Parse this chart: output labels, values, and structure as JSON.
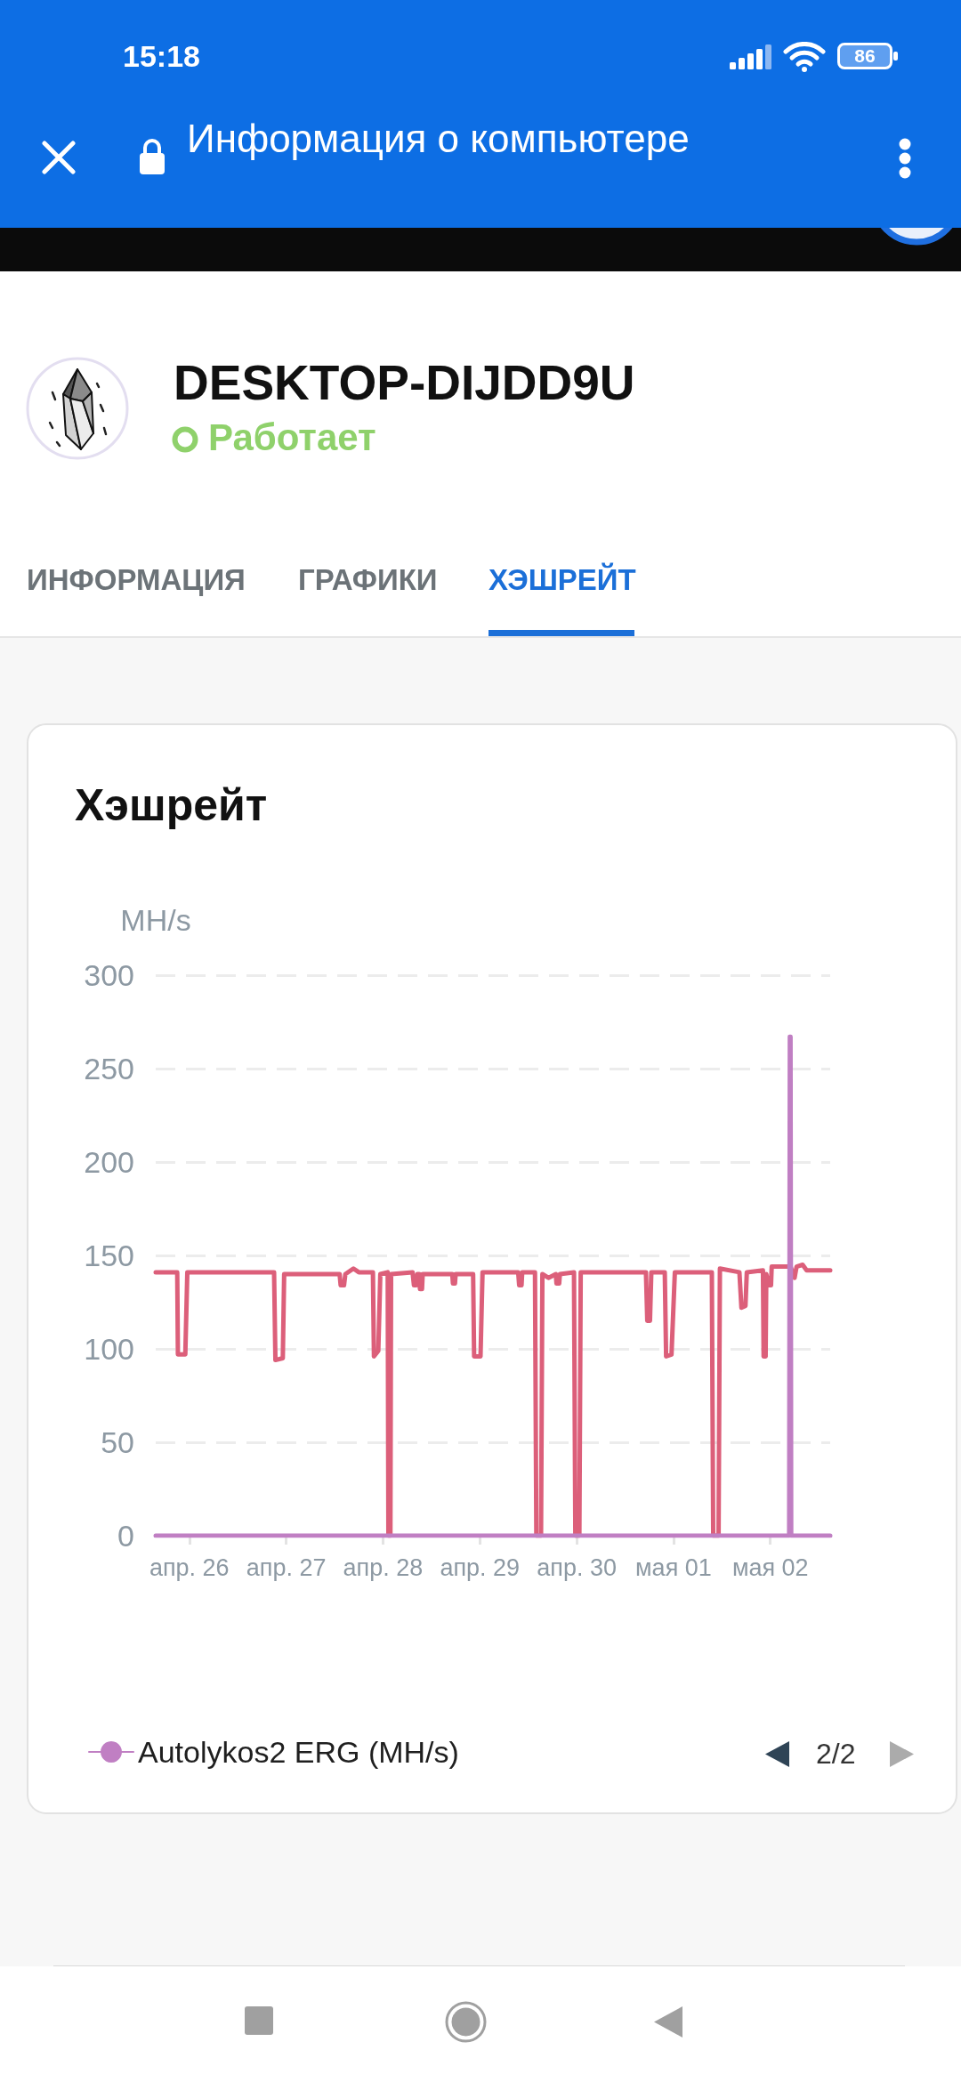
{
  "chart_data": {
    "type": "line",
    "title": "Хэшрейт",
    "ylabel": "MH/s",
    "xlim": [
      "--04-25T15:40",
      "--05-02T14:50"
    ],
    "xticks": [
      {
        "value": "--04-26",
        "label": "апр. 26"
      },
      {
        "value": "--04-27",
        "label": "апр. 27"
      },
      {
        "value": "--04-28",
        "label": "апр. 28"
      },
      {
        "value": "--04-29",
        "label": "апр. 29"
      },
      {
        "value": "--04-30",
        "label": "апр. 30"
      },
      {
        "value": "--05-01",
        "label": "мая 01"
      },
      {
        "value": "--05-02",
        "label": "мая 02"
      }
    ],
    "ylim": [
      0,
      300
    ],
    "yticks": [
      0,
      50,
      100,
      150,
      200,
      250,
      300
    ],
    "grid": "y",
    "legend": "bottom left",
    "marker": "none",
    "line_style": "solid",
    "series": [
      {
        "color": "#dc5f7a",
        "x": [
          "--04-25T15:40",
          "--04-25T21:00",
          "--04-25T21:10",
          "--04-25T23:00",
          "--04-25T23:30",
          "--04-26T21:00",
          "--04-26T21:20",
          "--04-26T23:10",
          "--04-26T23:30",
          "--04-27T13:15",
          "--04-27T13:30",
          "--04-27T14:20",
          "--04-27T14:40",
          "--04-27T16:40",
          "--04-27T18:00",
          "--04-27T21:30",
          "--04-27T21:45",
          "--04-27T22:50",
          "--04-27T23:20",
          "--04-28T01:10",
          "--04-28T01:20",
          "--04-28T01:50",
          "--04-28T02:00",
          "--04-28T07:20",
          "--04-28T07:40",
          "--04-28T08:15",
          "--04-28T08:30",
          "--04-28T09:00",
          "--04-28T09:10",
          "--04-28T09:40",
          "--04-28T09:50",
          "--04-28T17:10",
          "--04-28T17:20",
          "--04-28T17:50",
          "--04-28T18:00",
          "--04-28T22:20",
          "--04-28T22:35",
          "--04-29T00:10",
          "--04-29T00:40",
          "--04-29T09:30",
          "--04-29T09:45",
          "--04-29T10:20",
          "--04-29T10:30",
          "--04-29T13:40",
          "--04-29T14:00",
          "--04-29T15:10",
          "--04-29T15:30",
          "--04-29T17:00",
          "--04-29T18:50",
          "--04-29T19:00",
          "--04-29T19:40",
          "--04-29T19:50",
          "--04-29T23:20",
          "--04-29T23:40",
          "--04-30T00:40",
          "--04-30T01:00",
          "--04-30T17:10",
          "--04-30T17:30",
          "--04-30T18:10",
          "--04-30T18:30",
          "--04-30T21:50",
          "--04-30T22:10",
          "--04-30T23:30",
          "--05-01T00:20",
          "--05-01T09:30",
          "--05-01T09:50",
          "--05-01T11:10",
          "--05-01T11:30",
          "--05-01T16:20",
          "--05-01T16:50",
          "--05-01T17:50",
          "--05-01T18:10",
          "--05-01T22:10",
          "--05-01T22:20",
          "--05-01T22:50",
          "--05-01T23:00",
          "--05-01T23:40",
          "--05-02T00:10",
          "--05-02T00:20",
          "--05-02T05:00",
          "--05-02T06:00",
          "--05-02T06:30",
          "--05-02T08:00",
          "--05-02T09:00",
          "--05-02T14:50"
        ],
        "values": [
          141,
          141,
          97,
          97,
          141,
          141,
          94,
          95,
          140,
          140,
          134,
          134,
          140,
          143,
          141,
          141,
          96,
          99,
          140,
          141,
          0,
          0,
          140,
          141,
          134,
          134,
          140,
          140,
          132,
          132,
          140,
          140,
          135,
          135,
          140,
          140,
          96,
          96,
          141,
          141,
          134,
          134,
          141,
          141,
          0,
          0,
          140,
          138,
          140,
          135,
          135,
          140,
          141,
          0,
          0,
          141,
          141,
          115,
          115,
          141,
          141,
          96,
          97,
          141,
          141,
          0,
          0,
          143,
          141,
          122,
          123,
          141,
          142,
          96,
          96,
          140,
          134,
          134,
          144,
          144,
          138,
          144,
          145,
          142,
          142
        ]
      },
      {
        "name": "Autolykos2 ERG (MH/s)",
        "color": "#c07fc3",
        "x": [
          "--04-25T15:40",
          "--05-02T04:40",
          "--05-02T04:50",
          "--05-02T05:00",
          "--05-02T05:10",
          "--05-02T14:50"
        ],
        "values": [
          0,
          0,
          267,
          267,
          0,
          0
        ]
      }
    ],
    "annotations": [
      "15:18",
      "86",
      "Информация о компьютере",
      "DESKTOP-DIJDD9U",
      "Работает",
      "ИНФОРМАЦИЯ",
      "ГРАФИКИ",
      "ХЭШРЕЙТ",
      "2/2"
    ]
  }
}
